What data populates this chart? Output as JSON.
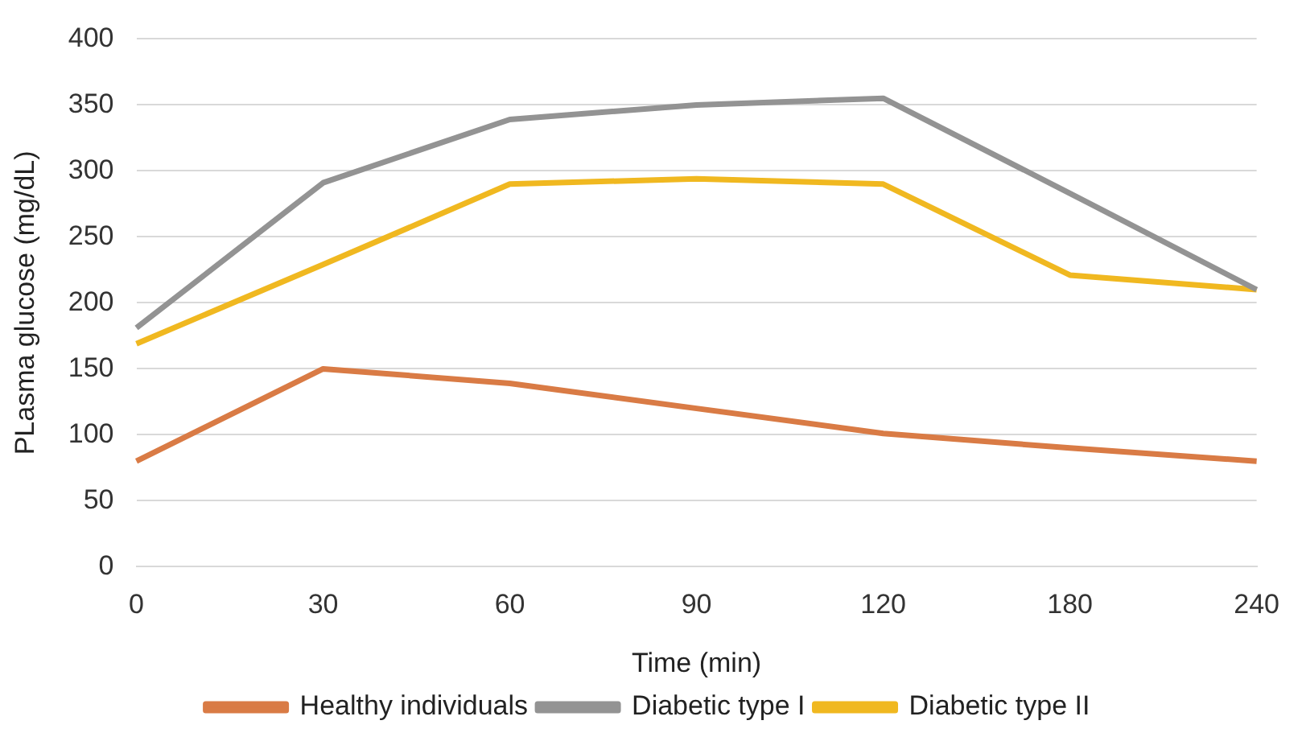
{
  "chart_data": {
    "type": "line",
    "xlabel": "Time (min)",
    "ylabel": "PLasma glucose (mg/dL)",
    "categories": [
      "0",
      "30",
      "60",
      "90",
      "120",
      "180",
      "240"
    ],
    "series": [
      {
        "name": "Healthy individuals",
        "color": "#d97b45",
        "values": [
          80,
          150,
          139,
          120,
          101,
          90,
          80
        ]
      },
      {
        "name": "Diabetic type I",
        "color": "#939393",
        "values": [
          181,
          291,
          339,
          350,
          355,
          283,
          210
        ]
      },
      {
        "name": "Diabetic type II",
        "color": "#f0b820",
        "values": [
          169,
          229,
          290,
          294,
          290,
          221,
          210
        ]
      }
    ],
    "ylim": [
      0,
      400
    ],
    "yticks": [
      0,
      50,
      100,
      150,
      200,
      250,
      300,
      350,
      400
    ],
    "grid": "y",
    "legend": "bottom",
    "marker": "none",
    "line_style": "solid"
  }
}
